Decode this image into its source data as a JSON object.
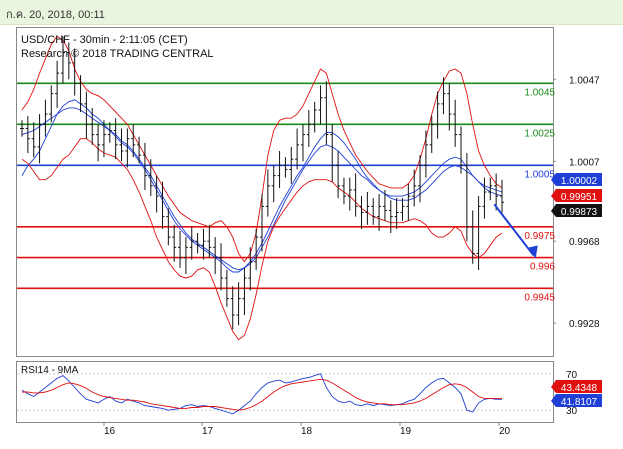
{
  "header": {
    "timestamp": "ก.ค. 20, 2018, 00:11"
  },
  "chart_data": [
    {
      "type": "line",
      "title": "USD/CHF - 30min - 2:11:05 (CET)",
      "subtitle": "Research © 2018 TRADING CENTRAL",
      "ylim": [
        0.9912,
        1.0072
      ],
      "x_ticks": [
        "16",
        "17",
        "18",
        "19",
        "20"
      ],
      "y_ticks": [
        1.0047,
        1.0007,
        0.9968,
        0.9928
      ],
      "levels": [
        {
          "label": "1.0045",
          "value": 1.0045,
          "color": "#1a8c1a"
        },
        {
          "label": "1.0025",
          "value": 1.0025,
          "color": "#1a8c1a"
        },
        {
          "label": "1.0005",
          "value": 1.0005,
          "color": "#1f3fd6"
        },
        {
          "label": "0.9975",
          "value": 0.9975,
          "color": "#e01010"
        },
        {
          "label": "0.996",
          "value": 0.996,
          "color": "#e01010"
        },
        {
          "label": "0.9945",
          "value": 0.9945,
          "color": "#e01010"
        }
      ],
      "price_tags": [
        {
          "label": "1.00002",
          "value": 1.00002,
          "bg": "#1f3fd6",
          "fg": "#ffffff"
        },
        {
          "label": "0.99951",
          "value": 0.99951,
          "bg": "#e01010",
          "fg": "#ffffff"
        },
        {
          "label": "0.99873",
          "value": 0.99873,
          "bg": "#111111",
          "fg": "#ffffff"
        }
      ],
      "series": [
        {
          "values": [
            1.0023,
            1.0018,
            1.0014,
            1.0025,
            1.003,
            1.004,
            1.005,
            1.006,
            1.0055,
            1.0045,
            1.0035,
            1.0025,
            1.002,
            1.0015,
            1.002,
            1.0022,
            1.0015,
            1.0012,
            1.0018,
            1.0015,
            1.001,
            1.0,
            0.9995,
            0.999,
            0.998,
            0.997,
            0.9965,
            0.996,
            0.9965,
            0.9968,
            0.9966,
            0.9968,
            0.9965,
            0.996,
            0.995,
            0.994,
            0.9932,
            0.994,
            0.995,
            0.9958,
            0.997,
            0.9985,
            0.9995,
            1.0,
            1.0005,
            1.0003,
            1.0008,
            1.0015,
            1.002,
            1.0025,
            1.0032,
            1.0038,
            1.002,
            1.0005,
            0.9995,
            0.999,
            0.9993,
            0.9985,
            0.9982,
            0.9985,
            0.998,
            0.9985,
            0.9983,
            0.998,
            0.9982,
            0.9985,
            0.999,
            0.9995,
            1.0005,
            1.0015,
            1.0025,
            1.0035,
            1.004,
            1.003,
            1.002,
            1.0005,
            0.9975,
            0.9962,
            0.9985,
            0.9992,
            0.9995,
            0.999,
            0.9987
          ]
        },
        {
          "values": [
            1.002,
            1.0021,
            1.0022,
            1.0024,
            1.0026,
            1.0028,
            1.003,
            1.0032,
            1.0033,
            1.0033,
            1.0032,
            1.003,
            1.0028,
            1.0026,
            1.0024,
            1.0022,
            1.002,
            1.0017,
            1.0015,
            1.0012,
            1.0008,
            1.0004,
            1.0,
            0.9995,
            0.999,
            0.9985,
            0.998,
            0.9976,
            0.9972,
            0.9969,
            0.9967,
            0.9965,
            0.9963,
            0.9961,
            0.9959,
            0.9957,
            0.9955,
            0.9954,
            0.9955,
            0.9957,
            0.996,
            0.9965,
            0.997,
            0.9976,
            0.9982,
            0.9988,
            0.9993,
            0.9998,
            1.0003,
            1.0007,
            1.0011,
            1.0014,
            1.0015,
            1.0014,
            1.0012,
            1.0009,
            1.0006,
            1.0003,
            1.0,
            0.9998,
            0.9995,
            0.9993,
            0.9991,
            0.999,
            0.999,
            0.999,
            0.9991,
            0.9992,
            0.9994,
            0.9997,
            1.0,
            1.0003,
            1.0006,
            1.0008,
            1.0009,
            1.0008,
            1.0004,
            1.0,
            0.9997,
            0.9995,
            0.9994,
            0.9993,
            0.9992
          ]
        },
        {
          "values": [
            1.0,
            1.0005,
            1.0008,
            1.0012,
            1.0018,
            1.0024,
            1.003,
            1.0034,
            1.0036,
            1.0037,
            1.0035,
            1.0033,
            1.003,
            1.0028,
            1.0025,
            1.0022,
            1.0019,
            1.0016,
            1.0014,
            1.0011,
            1.0007,
            1.0003,
            0.9998,
            0.9993,
            0.9988,
            0.9983,
            0.9978,
            0.9974,
            0.9971,
            0.9968,
            0.9966,
            0.9964,
            0.9962,
            0.996,
            0.9958,
            0.9955,
            0.9953,
            0.9953,
            0.9955,
            0.9958,
            0.9962,
            0.9967,
            0.9973,
            0.9979,
            0.9985,
            0.999,
            0.9995,
            1.0,
            1.0004,
            1.0009,
            1.0014,
            1.0018,
            1.0021,
            1.0021,
            1.0019,
            1.0016,
            1.0012,
            1.0008,
            1.0003,
            0.9999,
            0.9996,
            0.9993,
            0.9991,
            0.9989,
            0.9988,
            0.9988,
            0.9988,
            0.9989,
            0.9991,
            0.9993,
            0.9996,
            0.9999,
            1.0002,
            1.0004,
            1.0005,
            1.0004,
            1.0002,
            1.0,
            0.9997,
            0.9994,
            0.9992,
            0.9991,
            0.999
          ]
        },
        {
          "values": [
            1.0032,
            1.0036,
            1.0042,
            1.005,
            1.0057,
            1.0064,
            1.0068,
            1.0066,
            1.0061,
            1.0052,
            1.0046,
            1.0042,
            1.004,
            1.0039,
            1.0037,
            1.0034,
            1.0031,
            1.0028,
            1.0025,
            1.002,
            1.0015,
            1.001,
            1.0005,
            1.0,
            0.9995,
            0.999,
            0.9986,
            0.9982,
            0.998,
            0.9978,
            0.9977,
            0.9976,
            0.9975,
            0.9977,
            0.9978,
            0.9975,
            0.997,
            0.9962,
            0.9958,
            0.9962,
            0.9972,
            0.999,
            1.001,
            1.0022,
            1.0027,
            1.0028,
            1.0028,
            1.003,
            1.0034,
            1.004,
            1.0046,
            1.0052,
            1.005,
            1.004,
            1.003,
            1.0022,
            1.0016,
            1.001,
            1.0006,
            1.0002,
            0.9999,
            0.9996,
            0.9995,
            0.9994,
            0.9994,
            0.9994,
            0.9996,
            1.0,
            1.0008,
            1.0018,
            1.003,
            1.004,
            1.0046,
            1.0051,
            1.0052,
            1.005,
            1.004,
            1.0025,
            1.0012,
            1.0005,
            1.0,
            0.9996,
            0.9994
          ]
        },
        {
          "values": [
            1.0008,
            1.0006,
            1.0002,
            0.9998,
            0.9998,
            1.0,
            1.0004,
            1.0008,
            1.001,
            1.0014,
            1.0018,
            1.0018,
            1.0016,
            1.0013,
            1.0011,
            1.001,
            1.0009,
            1.0006,
            1.0003,
            0.9998,
            0.9992,
            0.9985,
            0.9978,
            0.997,
            0.9964,
            0.9958,
            0.9954,
            0.9951,
            0.995,
            0.9951,
            0.9954,
            0.9955,
            0.9953,
            0.9946,
            0.9938,
            0.9931,
            0.9924,
            0.992,
            0.9922,
            0.993,
            0.9942,
            0.9956,
            0.9968,
            0.9975,
            0.998,
            0.9984,
            0.9988,
            0.9992,
            0.9995,
            0.9997,
            0.9998,
            0.9998,
            0.9998,
            0.9997,
            0.9994,
            0.9992,
            0.999,
            0.9987,
            0.9984,
            0.9982,
            0.998,
            0.9979,
            0.9978,
            0.9977,
            0.9977,
            0.9977,
            0.9978,
            0.9979,
            0.9978,
            0.9976,
            0.9972,
            0.997,
            0.997,
            0.9972,
            0.9975,
            0.9973,
            0.9966,
            0.9962,
            0.996,
            0.9962,
            0.9966,
            0.997,
            0.9972
          ]
        }
      ],
      "arrow": {
        "from": [
          80,
          0.9986
        ],
        "to": [
          84,
          0.9961
        ]
      }
    },
    {
      "type": "line",
      "title": "RSI14 - 9MA",
      "ylim": [
        17,
        83
      ],
      "y_ticks": [
        70,
        30
      ],
      "price_tags": [
        {
          "label": "43.4348",
          "value": 43.4348,
          "bg": "#e01010",
          "fg": "#ffffff"
        },
        {
          "label": "41.8107",
          "value": 41.8107,
          "bg": "#1f3fd6",
          "fg": "#ffffff"
        }
      ],
      "series": [
        {
          "values": [
            52,
            48,
            45,
            50,
            55,
            60,
            65,
            68,
            62,
            55,
            48,
            42,
            40,
            38,
            42,
            45,
            40,
            38,
            42,
            40,
            38,
            35,
            34,
            33,
            32,
            30,
            31,
            32,
            35,
            36,
            34,
            35,
            34,
            32,
            30,
            28,
            26,
            30,
            35,
            40,
            48,
            55,
            60,
            62,
            63,
            60,
            61,
            63,
            65,
            66,
            68,
            70,
            55,
            45,
            40,
            38,
            40,
            36,
            35,
            37,
            35,
            37,
            36,
            35,
            36,
            37,
            40,
            42,
            48,
            55,
            60,
            64,
            65,
            60,
            55,
            48,
            30,
            28,
            38,
            42,
            43,
            42,
            42
          ]
        },
        {
          "values": [
            50,
            50,
            49,
            49,
            50,
            52,
            55,
            58,
            60,
            59,
            57,
            54,
            50,
            47,
            45,
            44,
            43,
            42,
            41,
            41,
            40,
            39,
            37,
            36,
            35,
            34,
            33,
            32,
            32,
            33,
            33,
            34,
            34,
            34,
            33,
            32,
            31,
            30,
            31,
            33,
            36,
            40,
            45,
            50,
            54,
            57,
            59,
            60,
            61,
            62,
            63,
            64,
            63,
            60,
            56,
            52,
            48,
            44,
            41,
            39,
            38,
            37,
            37,
            36,
            36,
            36,
            37,
            38,
            40,
            43,
            47,
            51,
            55,
            58,
            59,
            58,
            55,
            50,
            45,
            43,
            43,
            43,
            43
          ]
        }
      ]
    }
  ]
}
